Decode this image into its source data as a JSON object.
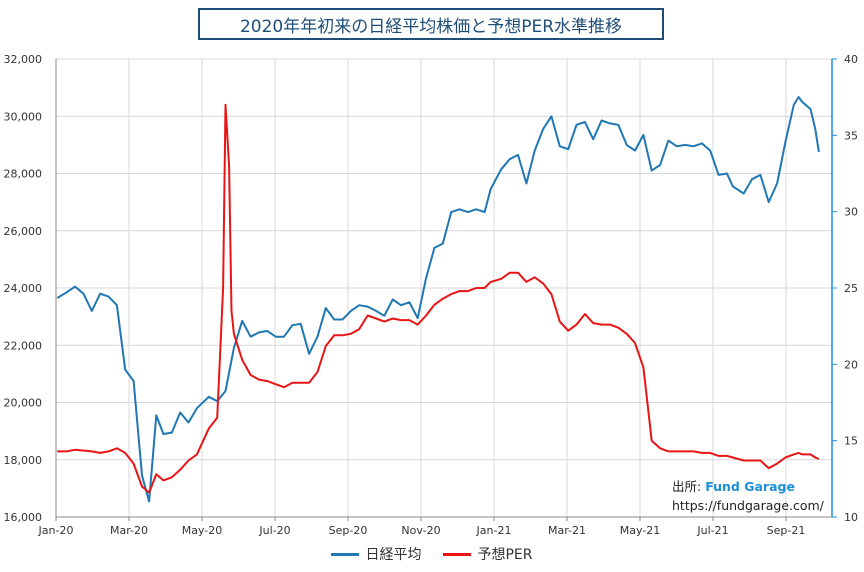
{
  "chart_data": {
    "type": "line",
    "title": "2020年年初来の日経平均株価と予想PER水準推移",
    "source_label": "出所:",
    "source_brand": "Fund Garage",
    "source_url": "https://fundgarage.com/",
    "x_ticks": [
      "Jan-20",
      "Mar-20",
      "May-20",
      "Jul-20",
      "Sep-20",
      "Nov-20",
      "Jan-21",
      "Mar-21",
      "May-21",
      "Jul-21",
      "Sep-21"
    ],
    "y_left": {
      "ylim": [
        16000,
        32000
      ],
      "ticks": [
        "16,000",
        "18,000",
        "20,000",
        "22,000",
        "24,000",
        "26,000",
        "28,000",
        "30,000",
        "32,000"
      ]
    },
    "y_right": {
      "ylim": [
        10,
        40
      ],
      "ticks": [
        "10",
        "15",
        "20",
        "25",
        "30",
        "35",
        "40"
      ]
    },
    "grid": true,
    "legend_position": "bottom",
    "series": [
      {
        "name": "日経平均",
        "axis": "left",
        "color": "#1f77b4",
        "points": [
          [
            "2020-01-02",
            23650
          ],
          [
            "2020-01-10",
            23850
          ],
          [
            "2020-01-17",
            24050
          ],
          [
            "2020-01-24",
            23800
          ],
          [
            "2020-01-31",
            23200
          ],
          [
            "2020-02-07",
            23800
          ],
          [
            "2020-02-14",
            23700
          ],
          [
            "2020-02-21",
            23400
          ],
          [
            "2020-02-28",
            21150
          ],
          [
            "2020-03-06",
            20750
          ],
          [
            "2020-03-13",
            17450
          ],
          [
            "2020-03-19",
            16550
          ],
          [
            "2020-03-25",
            19550
          ],
          [
            "2020-03-31",
            18900
          ],
          [
            "2020-04-07",
            18950
          ],
          [
            "2020-04-14",
            19650
          ],
          [
            "2020-04-21",
            19300
          ],
          [
            "2020-04-28",
            19800
          ],
          [
            "2020-05-08",
            20200
          ],
          [
            "2020-05-15",
            20050
          ],
          [
            "2020-05-22",
            20400
          ],
          [
            "2020-05-29",
            21900
          ],
          [
            "2020-06-05",
            22850
          ],
          [
            "2020-06-12",
            22300
          ],
          [
            "2020-06-19",
            22450
          ],
          [
            "2020-06-26",
            22500
          ],
          [
            "2020-07-03",
            22300
          ],
          [
            "2020-07-10",
            22300
          ],
          [
            "2020-07-17",
            22700
          ],
          [
            "2020-07-24",
            22750
          ],
          [
            "2020-07-31",
            21700
          ],
          [
            "2020-08-07",
            22300
          ],
          [
            "2020-08-14",
            23300
          ],
          [
            "2020-08-21",
            22900
          ],
          [
            "2020-08-28",
            22900
          ],
          [
            "2020-09-04",
            23200
          ],
          [
            "2020-09-11",
            23400
          ],
          [
            "2020-09-18",
            23350
          ],
          [
            "2020-09-25",
            23200
          ],
          [
            "2020-10-02",
            23030
          ],
          [
            "2020-10-09",
            23600
          ],
          [
            "2020-10-16",
            23400
          ],
          [
            "2020-10-23",
            23500
          ],
          [
            "2020-10-30",
            22950
          ],
          [
            "2020-11-06",
            24350
          ],
          [
            "2020-11-13",
            25400
          ],
          [
            "2020-11-20",
            25550
          ],
          [
            "2020-11-27",
            26650
          ],
          [
            "2020-12-04",
            26750
          ],
          [
            "2020-12-11",
            26650
          ],
          [
            "2020-12-18",
            26750
          ],
          [
            "2020-12-25",
            26650
          ],
          [
            "2020-12-30",
            27450
          ],
          [
            "2021-01-08",
            28150
          ],
          [
            "2021-01-15",
            28500
          ],
          [
            "2021-01-22",
            28650
          ],
          [
            "2021-01-29",
            27650
          ],
          [
            "2021-02-05",
            28800
          ],
          [
            "2021-02-12",
            29550
          ],
          [
            "2021-02-19",
            30000
          ],
          [
            "2021-02-26",
            28950
          ],
          [
            "2021-03-05",
            28850
          ],
          [
            "2021-03-12",
            29700
          ],
          [
            "2021-03-19",
            29800
          ],
          [
            "2021-03-26",
            29200
          ],
          [
            "2021-04-02",
            29850
          ],
          [
            "2021-04-09",
            29750
          ],
          [
            "2021-04-16",
            29700
          ],
          [
            "2021-04-23",
            29000
          ],
          [
            "2021-04-30",
            28800
          ],
          [
            "2021-05-07",
            29350
          ],
          [
            "2021-05-14",
            28100
          ],
          [
            "2021-05-21",
            28300
          ],
          [
            "2021-05-28",
            29150
          ],
          [
            "2021-06-04",
            28950
          ],
          [
            "2021-06-11",
            29000
          ],
          [
            "2021-06-18",
            28950
          ],
          [
            "2021-06-25",
            29050
          ],
          [
            "2021-07-02",
            28800
          ],
          [
            "2021-07-09",
            27950
          ],
          [
            "2021-07-16",
            28000
          ],
          [
            "2021-07-21",
            27550
          ],
          [
            "2021-07-30",
            27300
          ],
          [
            "2021-08-06",
            27800
          ],
          [
            "2021-08-13",
            27950
          ],
          [
            "2021-08-20",
            27000
          ],
          [
            "2021-08-27",
            27650
          ],
          [
            "2021-09-03",
            29100
          ],
          [
            "2021-09-10",
            30400
          ],
          [
            "2021-09-14",
            30670
          ],
          [
            "2021-09-17",
            30500
          ],
          [
            "2021-09-24",
            30250
          ],
          [
            "2021-09-28",
            29550
          ],
          [
            "2021-10-01",
            28750
          ]
        ]
      },
      {
        "name": "予想PER",
        "axis": "right",
        "color": "#e81416",
        "points": [
          [
            "2020-01-02",
            14.3
          ],
          [
            "2020-01-10",
            14.3
          ],
          [
            "2020-01-17",
            14.4
          ],
          [
            "2020-01-31",
            14.3
          ],
          [
            "2020-02-07",
            14.2
          ],
          [
            "2020-02-14",
            14.3
          ],
          [
            "2020-02-21",
            14.5
          ],
          [
            "2020-02-28",
            14.2
          ],
          [
            "2020-03-06",
            13.5
          ],
          [
            "2020-03-13",
            12.0
          ],
          [
            "2020-03-19",
            11.6
          ],
          [
            "2020-03-25",
            12.8
          ],
          [
            "2020-03-31",
            12.4
          ],
          [
            "2020-04-07",
            12.6
          ],
          [
            "2020-04-14",
            13.1
          ],
          [
            "2020-04-21",
            13.7
          ],
          [
            "2020-04-28",
            14.1
          ],
          [
            "2020-05-08",
            15.8
          ],
          [
            "2020-05-15",
            16.5
          ],
          [
            "2020-05-20",
            25.0
          ],
          [
            "2020-05-22",
            37.0
          ],
          [
            "2020-05-25",
            33.0
          ],
          [
            "2020-05-27",
            23.5
          ],
          [
            "2020-05-29",
            22.0
          ],
          [
            "2020-06-05",
            20.3
          ],
          [
            "2020-06-12",
            19.3
          ],
          [
            "2020-06-19",
            19.0
          ],
          [
            "2020-06-26",
            18.9
          ],
          [
            "2020-07-03",
            18.7
          ],
          [
            "2020-07-10",
            18.5
          ],
          [
            "2020-07-17",
            18.8
          ],
          [
            "2020-07-24",
            18.8
          ],
          [
            "2020-07-31",
            18.8
          ],
          [
            "2020-08-07",
            19.5
          ],
          [
            "2020-08-14",
            21.2
          ],
          [
            "2020-08-21",
            21.9
          ],
          [
            "2020-08-28",
            21.9
          ],
          [
            "2020-09-04",
            22.0
          ],
          [
            "2020-09-11",
            22.3
          ],
          [
            "2020-09-18",
            23.2
          ],
          [
            "2020-09-25",
            23.0
          ],
          [
            "2020-10-02",
            22.8
          ],
          [
            "2020-10-09",
            23.0
          ],
          [
            "2020-10-16",
            22.9
          ],
          [
            "2020-10-23",
            22.9
          ],
          [
            "2020-10-30",
            22.6
          ],
          [
            "2020-11-06",
            23.2
          ],
          [
            "2020-11-13",
            23.9
          ],
          [
            "2020-11-20",
            24.3
          ],
          [
            "2020-11-27",
            24.6
          ],
          [
            "2020-12-04",
            24.8
          ],
          [
            "2020-12-11",
            24.8
          ],
          [
            "2020-12-18",
            25.0
          ],
          [
            "2020-12-25",
            25.0
          ],
          [
            "2020-12-30",
            25.4
          ],
          [
            "2021-01-08",
            25.6
          ],
          [
            "2021-01-15",
            26.0
          ],
          [
            "2021-01-22",
            26.0
          ],
          [
            "2021-01-29",
            25.4
          ],
          [
            "2021-02-05",
            25.7
          ],
          [
            "2021-02-12",
            25.3
          ],
          [
            "2021-02-19",
            24.6
          ],
          [
            "2021-02-26",
            22.8
          ],
          [
            "2021-03-05",
            22.2
          ],
          [
            "2021-03-12",
            22.6
          ],
          [
            "2021-03-19",
            23.3
          ],
          [
            "2021-03-26",
            22.7
          ],
          [
            "2021-04-02",
            22.6
          ],
          [
            "2021-04-09",
            22.6
          ],
          [
            "2021-04-16",
            22.4
          ],
          [
            "2021-04-23",
            22.0
          ],
          [
            "2021-04-30",
            21.4
          ],
          [
            "2021-05-07",
            19.8
          ],
          [
            "2021-05-14",
            15.0
          ],
          [
            "2021-05-21",
            14.5
          ],
          [
            "2021-05-28",
            14.3
          ],
          [
            "2021-06-04",
            14.3
          ],
          [
            "2021-06-11",
            14.3
          ],
          [
            "2021-06-18",
            14.3
          ],
          [
            "2021-06-25",
            14.2
          ],
          [
            "2021-07-02",
            14.2
          ],
          [
            "2021-07-09",
            14.0
          ],
          [
            "2021-07-16",
            14.0
          ],
          [
            "2021-07-21",
            13.9
          ],
          [
            "2021-07-30",
            13.7
          ],
          [
            "2021-08-06",
            13.7
          ],
          [
            "2021-08-13",
            13.7
          ],
          [
            "2021-08-20",
            13.2
          ],
          [
            "2021-08-27",
            13.5
          ],
          [
            "2021-09-03",
            13.9
          ],
          [
            "2021-09-10",
            14.1
          ],
          [
            "2021-09-14",
            14.2
          ],
          [
            "2021-09-17",
            14.1
          ],
          [
            "2021-09-24",
            14.1
          ],
          [
            "2021-09-28",
            13.9
          ],
          [
            "2021-10-01",
            13.8
          ]
        ]
      }
    ]
  }
}
